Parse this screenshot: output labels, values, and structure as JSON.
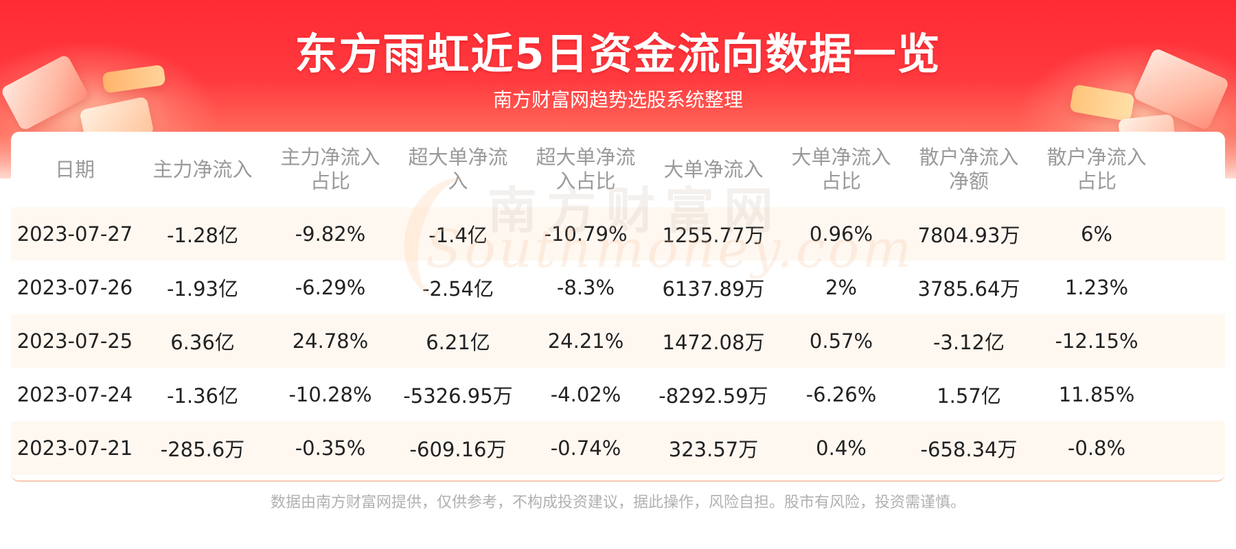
{
  "header": {
    "title": "东方雨虹近5日资金流向数据一览",
    "subtitle": "南方财富网趋势选股系统整理"
  },
  "watermark": {
    "cn": "南方财富网",
    "en": "Southmoney.com"
  },
  "table": {
    "columns": [
      "日期",
      "主力净流入",
      "主力净流入占比",
      "超大单净流入",
      "超大单净流入占比",
      "大单净流入",
      "大单净流入占比",
      "散户净流入净额",
      "散户净流入占比"
    ],
    "rows": [
      [
        "2023-07-27",
        "-1.28亿",
        "-9.82%",
        "-1.4亿",
        "-10.79%",
        "1255.77万",
        "0.96%",
        "7804.93万",
        "6%"
      ],
      [
        "2023-07-26",
        "-1.93亿",
        "-6.29%",
        "-2.54亿",
        "-8.3%",
        "6137.89万",
        "2%",
        "3785.64万",
        "1.23%"
      ],
      [
        "2023-07-25",
        "6.36亿",
        "24.78%",
        "6.21亿",
        "24.21%",
        "1472.08万",
        "0.57%",
        "-3.12亿",
        "-12.15%"
      ],
      [
        "2023-07-24",
        "-1.36亿",
        "-10.28%",
        "-5326.95万",
        "-4.02%",
        "-8292.59万",
        "-6.26%",
        "1.57亿",
        "11.85%"
      ],
      [
        "2023-07-21",
        "-285.6万",
        "-0.35%",
        "-609.16万",
        "-0.74%",
        "323.57万",
        "0.4%",
        "-658.34万",
        "-0.8%"
      ]
    ]
  },
  "footer": {
    "disclaimer": "数据由南方财富网提供，仅供参考，不构成投资建议，据此操作，风险自担。股市有风险，投资需谨慎。"
  },
  "colors": {
    "header_red": "#ff2a34",
    "row_stripe": "#fff8f1",
    "header_text": "#9a9a9a"
  }
}
